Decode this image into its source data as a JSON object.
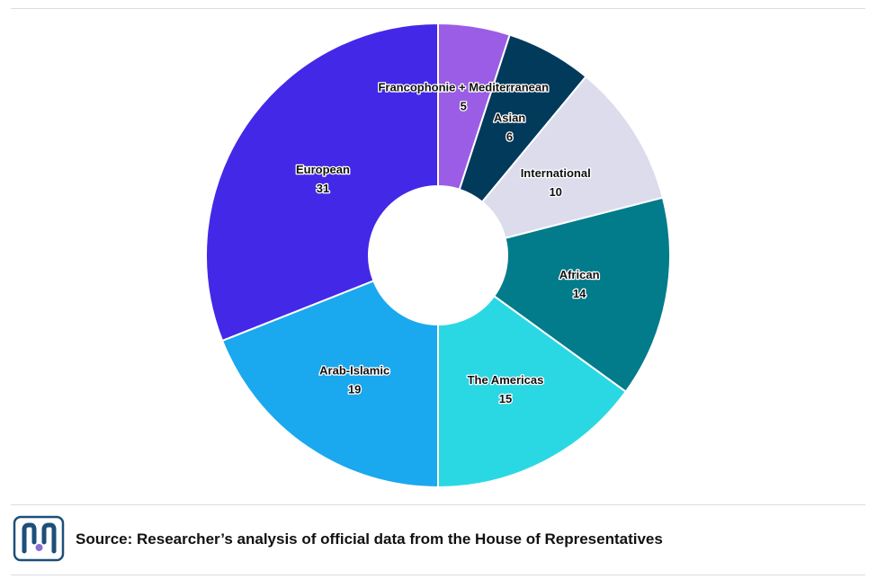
{
  "chart_data": {
    "type": "pie",
    "donut": true,
    "title": "",
    "categories": [
      "Francophonie + Mediterranean",
      "Asian",
      "International",
      "African",
      "The Americas",
      "Arab-Islamic",
      "European"
    ],
    "values": [
      5,
      6,
      10,
      14,
      15,
      19,
      31
    ],
    "colors": [
      "#9b5de5",
      "#023a5c",
      "#dcdcec",
      "#027b8a",
      "#2ad8e3",
      "#1aa8ef",
      "#4328e8"
    ],
    "start": "top, clockwise",
    "legend": "none (labels on slices)"
  },
  "footer": {
    "source": "Source: Researcher’s analysis of official data from the House of Representatives",
    "logo_icon": "institute-logo-icon",
    "logo_color": "#1c4f7a"
  }
}
